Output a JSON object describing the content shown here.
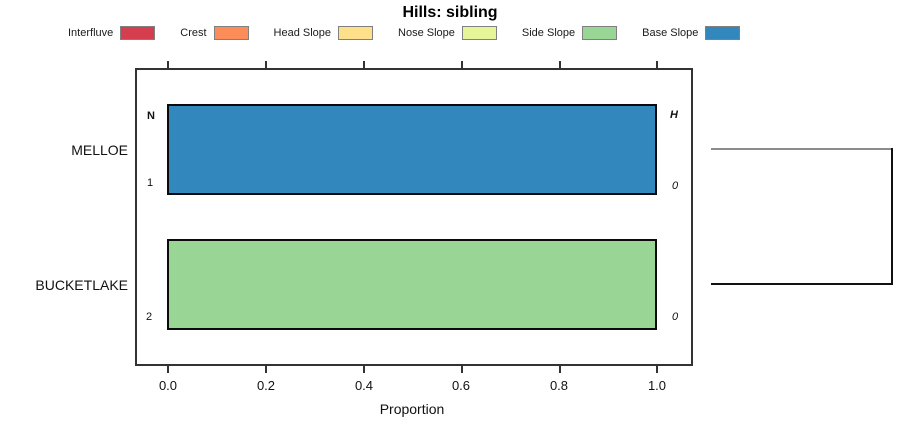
{
  "title": "Hills: sibling",
  "legend": {
    "items": [
      {
        "label": "Interfluve",
        "color": "#D53E4F"
      },
      {
        "label": "Crest",
        "color": "#FC8D59"
      },
      {
        "label": "Head Slope",
        "color": "#FEE08B"
      },
      {
        "label": "Nose Slope",
        "color": "#E6F598"
      },
      {
        "label": "Side Slope",
        "color": "#99D594"
      },
      {
        "label": "Base Slope",
        "color": "#3288BD"
      }
    ]
  },
  "x_axis": {
    "label": "Proportion",
    "ticks": [
      "0.0",
      "0.2",
      "0.4",
      "0.6",
      "0.8",
      "1.0"
    ]
  },
  "y_axis": {
    "labels": [
      "MELLOE",
      "BUCKETLAKE"
    ]
  },
  "bars": [
    {
      "category": "MELLOE",
      "segment": "Base Slope",
      "proportion": 1.0,
      "color": "#3288BD"
    },
    {
      "category": "BUCKETLAKE",
      "segment": "Side Slope",
      "proportion": 1.0,
      "color": "#99D594"
    }
  ],
  "annotations": {
    "n_header": "N",
    "h_header": "H",
    "rows": [
      {
        "n": "1",
        "h": "0"
      },
      {
        "n": "2",
        "h": "0"
      }
    ]
  },
  "sibling_link": {
    "connects": [
      "MELLOE",
      "BUCKETLAKE"
    ]
  },
  "chart_data": {
    "type": "bar",
    "orientation": "horizontal",
    "title": "Hills: sibling",
    "xlabel": "Proportion",
    "ylabel": "",
    "xlim": [
      0,
      1.08
    ],
    "x_ticks": [
      "0.0",
      "0.2",
      "0.4",
      "0.6",
      "0.8",
      "1.0"
    ],
    "categories": [
      "MELLOE",
      "BUCKETLAKE"
    ],
    "grid": false,
    "legend_position": "top",
    "series": [
      {
        "name": "Interfluve",
        "color": "#D53E4F",
        "values": [
          0,
          0
        ]
      },
      {
        "name": "Crest",
        "color": "#FC8D59",
        "values": [
          0,
          0
        ]
      },
      {
        "name": "Head Slope",
        "color": "#FEE08B",
        "values": [
          0,
          0
        ]
      },
      {
        "name": "Nose Slope",
        "color": "#E6F598",
        "values": [
          0,
          0
        ]
      },
      {
        "name": "Side Slope",
        "color": "#99D594",
        "values": [
          0,
          1.0
        ]
      },
      {
        "name": "Base Slope",
        "color": "#3288BD",
        "values": [
          1.0,
          0
        ]
      }
    ],
    "row_annotations": [
      {
        "category": "MELLOE",
        "N": "1",
        "H": "0"
      },
      {
        "category": "BUCKETLAKE",
        "N": "2",
        "H": "0"
      }
    ]
  }
}
